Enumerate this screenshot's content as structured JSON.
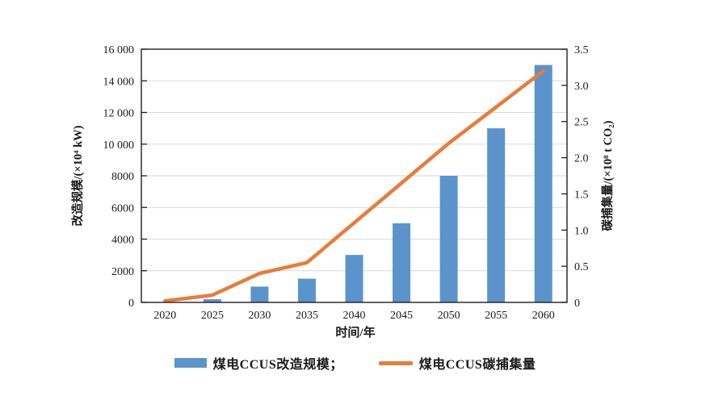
{
  "chart_data": {
    "type": "bar",
    "categories": [
      "2020",
      "2025",
      "2030",
      "2035",
      "2040",
      "2045",
      "2050",
      "2055",
      "2060"
    ],
    "series": [
      {
        "name": "煤电CCUS改造规模",
        "type": "bar",
        "axis": "left",
        "color": "#5b93cc",
        "values": [
          0,
          200,
          1000,
          1500,
          3000,
          5000,
          8000,
          11000,
          15000
        ]
      },
      {
        "name": "煤电CCUS碳捕集量",
        "type": "line",
        "axis": "right",
        "color": "#e87c3a",
        "values": [
          0.02,
          0.1,
          0.4,
          0.55,
          1.1,
          1.65,
          2.2,
          2.7,
          3.2
        ]
      }
    ],
    "xlabel": "时间/年",
    "left_axis": {
      "label": "改造规模/(×10⁴ kW)",
      "min": 0,
      "max": 16000,
      "tick_step": 2000,
      "tick_labels": [
        "0",
        "2000",
        "4000",
        "6000",
        "8000",
        "10 000",
        "12 000",
        "14 000",
        "16 000"
      ]
    },
    "right_axis": {
      "label": "碳捕集量/(×10⁸ t CO₂)",
      "min": 0,
      "max": 3.5,
      "tick_step": 0.5,
      "tick_labels": [
        "0",
        "0.5",
        "1.0",
        "1.5",
        "2.0",
        "2.5",
        "3.0",
        "3.5"
      ]
    },
    "grid": true,
    "legend_position": "bottom",
    "axis_color": "#1f1f1f",
    "grid_color": "#d9d9d9"
  },
  "legend": {
    "bar_label": "煤电CCUS改造规模；",
    "line_label": "煤电CCUS碳捕集量"
  }
}
